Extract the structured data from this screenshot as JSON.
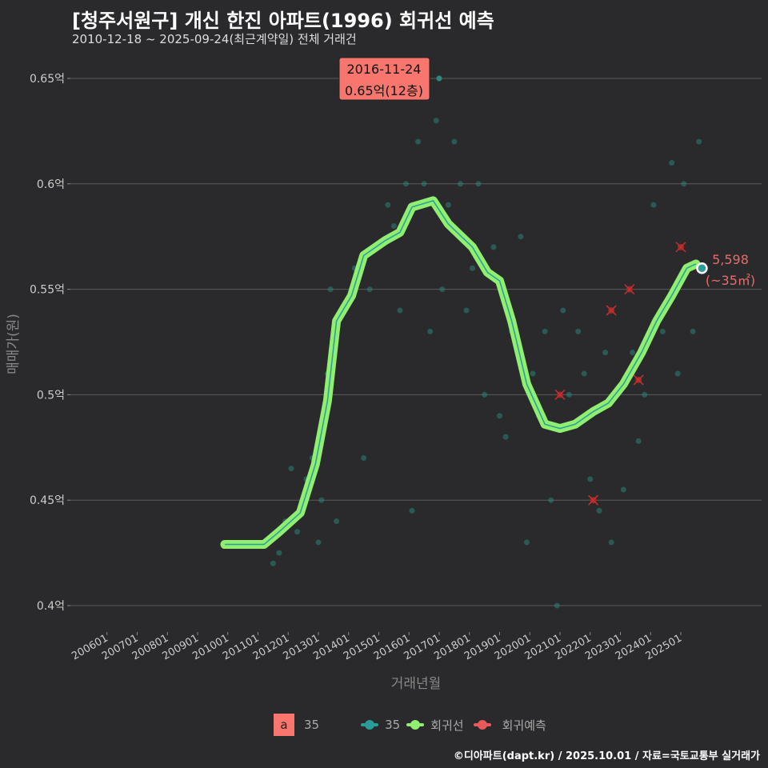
{
  "title": "[청주서원구] 개신 한진 아파트(1996) 회귀선 예측",
  "subtitle": "2010-12-18 ~ 2025-09-24(최근계약일) 전체 거래건",
  "caption": "©디아파트(dapt.kr) / 2025.10.01 / 자료=국토교통부 실거래가",
  "chart_data": {
    "type": "scatter",
    "xlabel": "거래년월",
    "ylabel": "매매가(원)",
    "ylim": [
      0.39,
      0.655
    ],
    "xlim": [
      2005.4,
      2026.3
    ],
    "y_ticks": [
      {
        "v": 0.4,
        "label": "0.4억"
      },
      {
        "v": 0.45,
        "label": "0.45억"
      },
      {
        "v": 0.5,
        "label": "0.5억"
      },
      {
        "v": 0.55,
        "label": "0.55억"
      },
      {
        "v": 0.6,
        "label": "0.6억"
      },
      {
        "v": 0.65,
        "label": "0.65억"
      }
    ],
    "x_ticks": [
      "200601",
      "200701",
      "200801",
      "200901",
      "201001",
      "201101",
      "201201",
      "201301",
      "201401",
      "201501",
      "201601",
      "201701",
      "201801",
      "201901",
      "202001",
      "202101",
      "202201",
      "202301",
      "202401",
      "202501"
    ],
    "scatter_35": [
      [
        2011.5,
        0.42
      ],
      [
        2011.7,
        0.425
      ],
      [
        2011.9,
        0.44
      ],
      [
        2012.1,
        0.465
      ],
      [
        2012.3,
        0.435
      ],
      [
        2012.6,
        0.46
      ],
      [
        2012.8,
        0.47
      ],
      [
        2013.0,
        0.43
      ],
      [
        2013.1,
        0.45
      ],
      [
        2013.3,
        0.51
      ],
      [
        2013.4,
        0.55
      ],
      [
        2013.6,
        0.44
      ],
      [
        2013.8,
        0.54
      ],
      [
        2014.2,
        0.56
      ],
      [
        2014.5,
        0.47
      ],
      [
        2014.7,
        0.55
      ],
      [
        2015.0,
        0.57
      ],
      [
        2015.3,
        0.59
      ],
      [
        2015.5,
        0.58
      ],
      [
        2015.7,
        0.54
      ],
      [
        2015.9,
        0.6
      ],
      [
        2016.1,
        0.445
      ],
      [
        2016.3,
        0.62
      ],
      [
        2016.5,
        0.6
      ],
      [
        2016.7,
        0.53
      ],
      [
        2016.9,
        0.63
      ],
      [
        2017.0,
        0.65
      ],
      [
        2017.1,
        0.55
      ],
      [
        2017.3,
        0.59
      ],
      [
        2017.5,
        0.62
      ],
      [
        2017.7,
        0.6
      ],
      [
        2017.9,
        0.54
      ],
      [
        2018.1,
        0.56
      ],
      [
        2018.3,
        0.6
      ],
      [
        2018.5,
        0.5
      ],
      [
        2018.8,
        0.57
      ],
      [
        2019.0,
        0.49
      ],
      [
        2019.2,
        0.48
      ],
      [
        2019.4,
        0.53
      ],
      [
        2019.7,
        0.575
      ],
      [
        2019.9,
        0.43
      ],
      [
        2020.1,
        0.51
      ],
      [
        2020.3,
        0.49
      ],
      [
        2020.5,
        0.53
      ],
      [
        2020.7,
        0.45
      ],
      [
        2020.9,
        0.4
      ],
      [
        2021.1,
        0.54
      ],
      [
        2021.3,
        0.5
      ],
      [
        2021.6,
        0.53
      ],
      [
        2021.8,
        0.51
      ],
      [
        2022.0,
        0.46
      ],
      [
        2022.3,
        0.445
      ],
      [
        2022.5,
        0.52
      ],
      [
        2022.7,
        0.43
      ],
      [
        2022.9,
        0.5
      ],
      [
        2023.1,
        0.455
      ],
      [
        2023.4,
        0.52
      ],
      [
        2023.6,
        0.478
      ],
      [
        2023.8,
        0.5
      ],
      [
        2024.1,
        0.59
      ],
      [
        2024.4,
        0.53
      ],
      [
        2024.7,
        0.61
      ],
      [
        2024.9,
        0.51
      ],
      [
        2025.1,
        0.6
      ],
      [
        2025.4,
        0.53
      ],
      [
        2025.6,
        0.62
      ]
    ],
    "regression": [
      [
        2009.9,
        0.429
      ],
      [
        2011.2,
        0.429
      ],
      [
        2011.7,
        0.435
      ],
      [
        2012.4,
        0.444
      ],
      [
        2012.9,
        0.467
      ],
      [
        2013.3,
        0.497
      ],
      [
        2013.6,
        0.535
      ],
      [
        2014.1,
        0.547
      ],
      [
        2014.5,
        0.566
      ],
      [
        2015.2,
        0.573
      ],
      [
        2015.7,
        0.577
      ],
      [
        2016.1,
        0.589
      ],
      [
        2016.8,
        0.592
      ],
      [
        2017.3,
        0.581
      ],
      [
        2018.1,
        0.57
      ],
      [
        2018.6,
        0.558
      ],
      [
        2019.0,
        0.554
      ],
      [
        2019.4,
        0.535
      ],
      [
        2019.9,
        0.505
      ],
      [
        2020.5,
        0.486
      ],
      [
        2021.0,
        0.484
      ],
      [
        2021.5,
        0.486
      ],
      [
        2022.1,
        0.492
      ],
      [
        2022.6,
        0.496
      ],
      [
        2023.1,
        0.505
      ],
      [
        2023.7,
        0.52
      ],
      [
        2024.2,
        0.535
      ],
      [
        2024.7,
        0.547
      ],
      [
        2025.2,
        0.56
      ],
      [
        2025.5,
        0.562
      ]
    ],
    "predictions": [
      [
        2021.0,
        0.5
      ],
      [
        2022.1,
        0.45
      ],
      [
        2022.7,
        0.54
      ],
      [
        2023.3,
        0.55
      ],
      [
        2023.6,
        0.507
      ],
      [
        2025.0,
        0.57
      ]
    ],
    "highlight": {
      "date": "2016-11-24",
      "label": "0.65억(12층)"
    },
    "last_point": {
      "x": 2025.7,
      "y": 0.56,
      "value": "5,598",
      "area": "(~35㎡)"
    },
    "legend": [
      {
        "key": "a",
        "label": "35"
      },
      {
        "label": "35",
        "color": "#2a9d9a"
      },
      {
        "label": "회귀선",
        "color": "#90ee70"
      },
      {
        "label": "회귀예측",
        "color": "#e85a5a"
      }
    ]
  }
}
